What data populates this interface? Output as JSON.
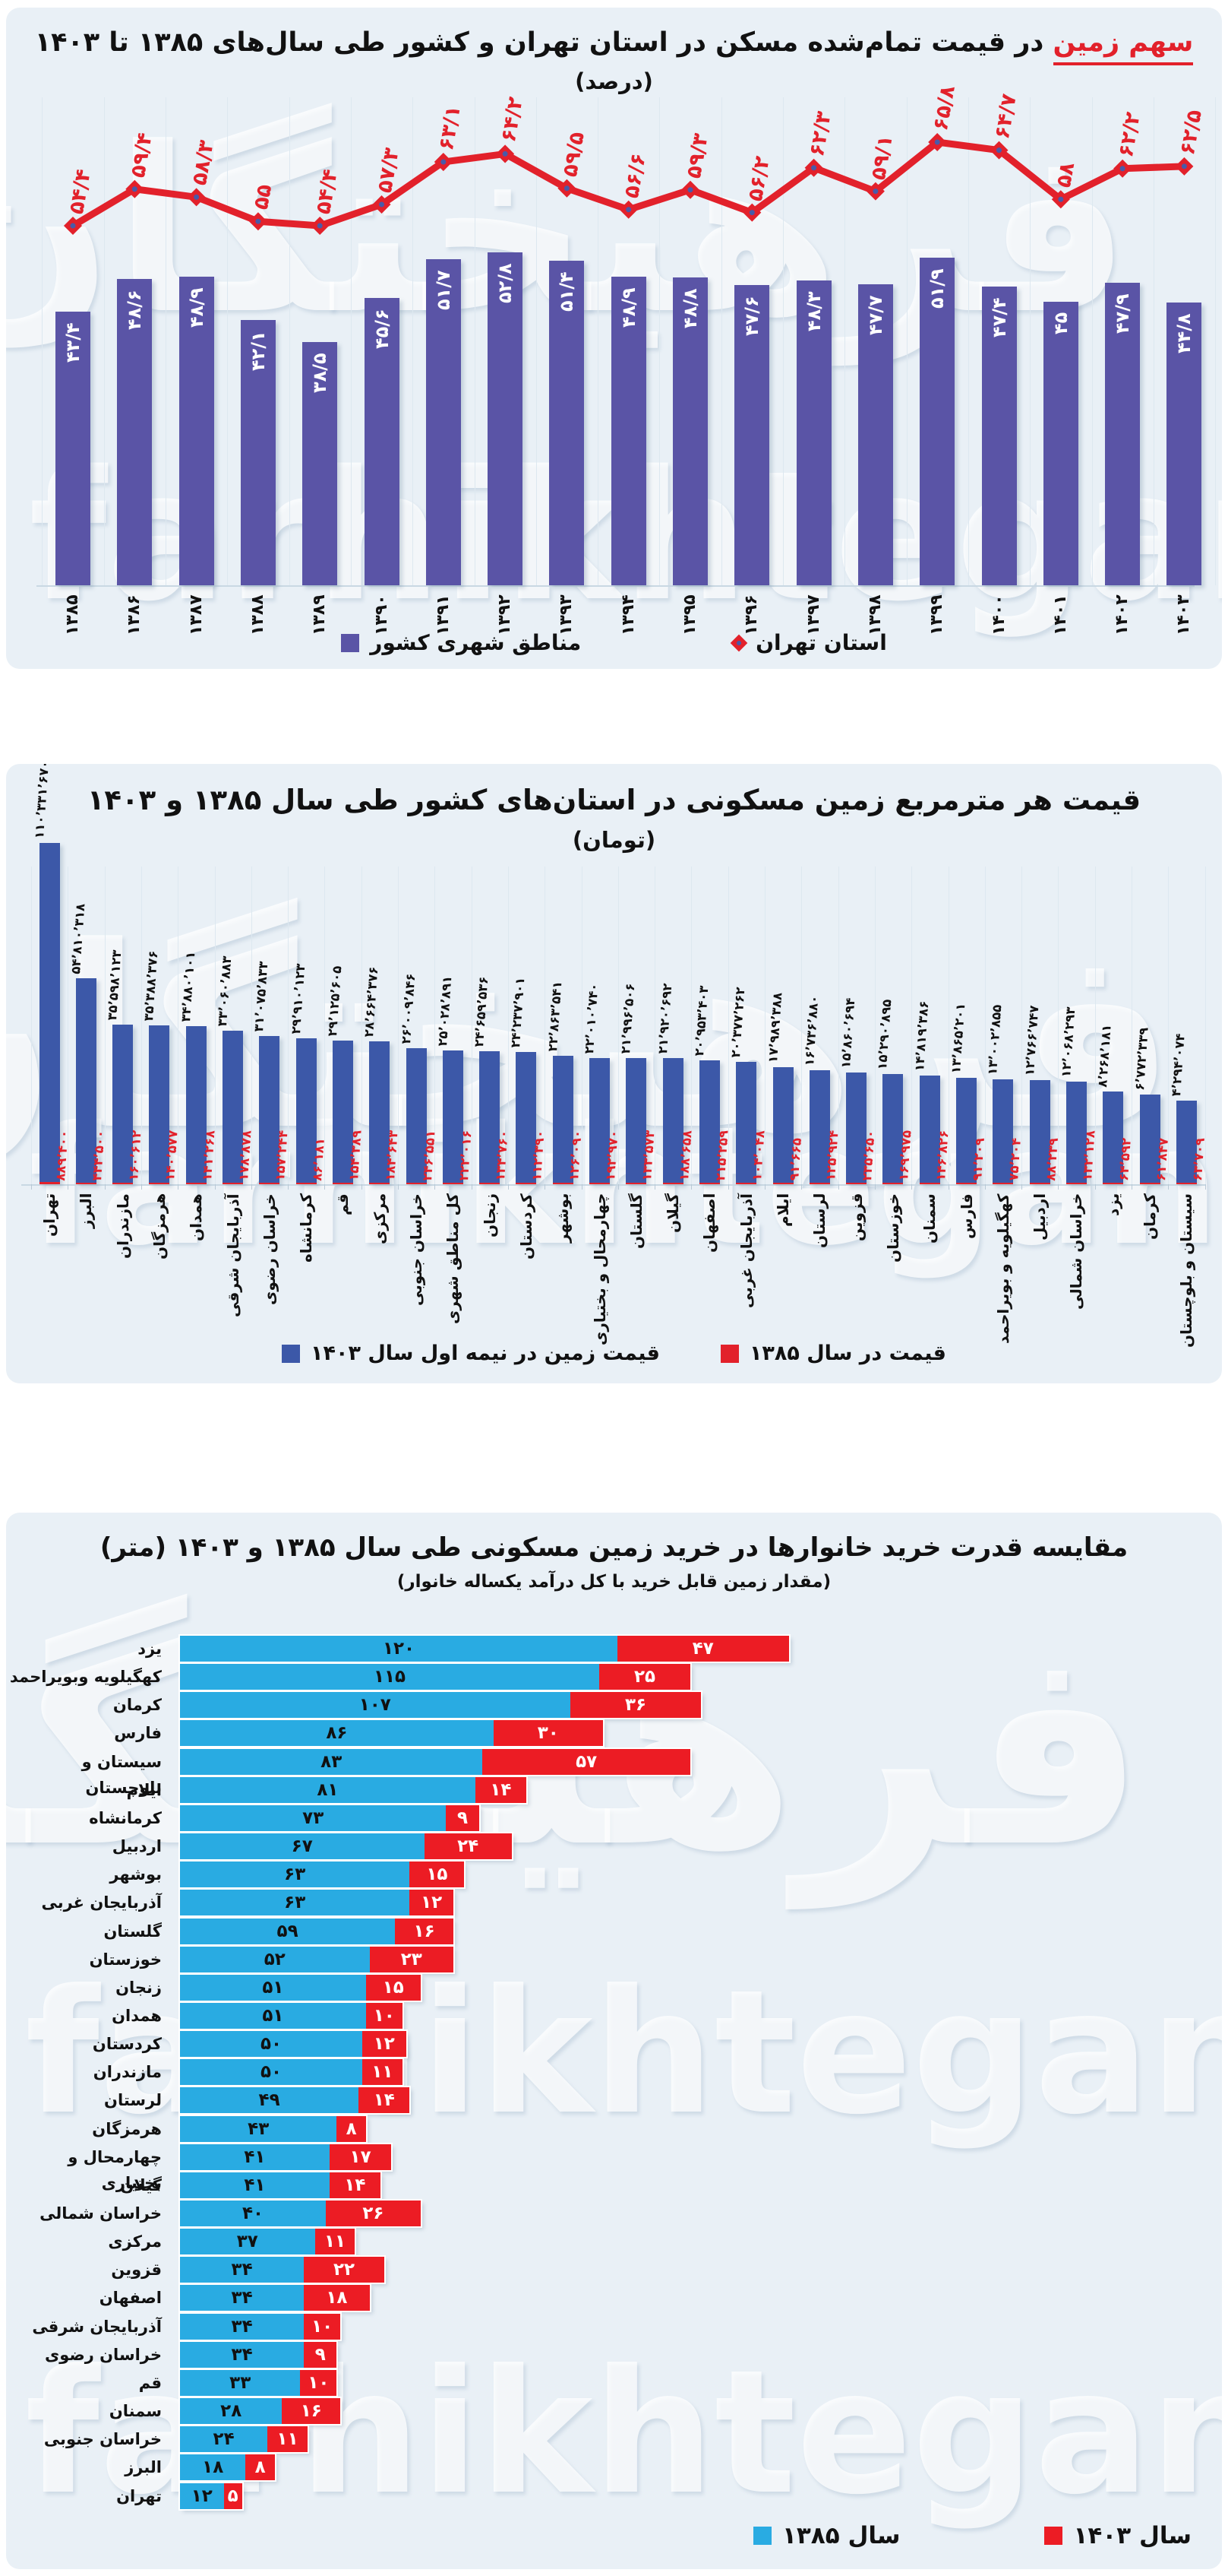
{
  "watermark": {
    "latin": "farhikhtegan",
    "farsi": "فرهیختگان"
  },
  "chart_data": [
    {
      "type": "bar",
      "title_highlight": "سهم زمین",
      "title_rest": " در قیمت تمام‌شده مسکن در استان تهران و کشور طی سال‌های ۱۳۸۵ تا ۱۴۰۳",
      "subtitle": "(درصد)",
      "categories": [
        1385,
        1386,
        1387,
        1388,
        1389,
        1390,
        1391,
        1392,
        1393,
        1394,
        1395,
        1396,
        1397,
        1398,
        1399,
        1400,
        1401,
        1402,
        1403
      ],
      "series": [
        {
          "name": "مناطق شهری کشور",
          "chart": "bar",
          "color": "#5a54a6",
          "values": [
            43.4,
            48.6,
            48.9,
            42.1,
            38.5,
            45.6,
            51.7,
            52.8,
            51.4,
            48.9,
            48.8,
            47.6,
            48.3,
            47.7,
            51.9,
            47.4,
            45,
            47.9,
            44.8
          ]
        },
        {
          "name": "استان تهران",
          "chart": "line",
          "color": "#e2212b",
          "values": [
            54.4,
            59.4,
            58.3,
            55,
            54.4,
            57.3,
            63.1,
            64.2,
            59.5,
            56.6,
            59.3,
            56.2,
            62.3,
            59.1,
            65.8,
            64.7,
            58,
            62.2,
            62.5
          ]
        }
      ],
      "ylim": [
        0,
        70
      ],
      "grid": "vertical",
      "legend_position": "bottom"
    },
    {
      "type": "bar",
      "title": "قیمت هر مترمربع زمین مسکونی در استان‌های کشور طی سال ۱۳۸۵ و ۱۴۰۳",
      "subtitle": "(تومان)",
      "categories": [
        "تهران",
        "البرز",
        "مازندران",
        "هرمزگان",
        "همدان",
        "آذربایجان شرقی",
        "خراسان رضوی",
        "کرمانشاه",
        "قم",
        "مرکزی",
        "خراسان جنوبی",
        "کل مناطق شهری",
        "زنجان",
        "کردستان",
        "بوشهر",
        "چهارمحال و بختیاری",
        "گلستان",
        "گیلان",
        "اصفهان",
        "آذربایجان غربی",
        "ایلام",
        "لرستان",
        "قزوین",
        "خوزستان",
        "سمنان",
        "فارس",
        "کهگیلویه و بویراحمد",
        "اردبیل",
        "خراسان شمالی",
        "یزد",
        "کرمان",
        "سیستان و بلوچستان"
      ],
      "series": [
        {
          "name": "قیمت زمین در نیمه اول سال ۱۴۰۳",
          "color": "#3c58a8",
          "values": [
            110331670,
            54810318,
            35598123,
            35388376,
            34880101,
            33060883,
            31075833,
            29910123,
            29125605,
            28664376,
            26009846,
            25028891,
            24659536,
            24237901,
            22863541,
            22010740,
            21996506,
            21920692,
            20953403,
            20377262,
            17989388,
            16736880,
            15860694,
            15290895,
            14819386,
            13865201,
            13002855,
            12766747,
            12068293,
            8268181,
            6772339,
            4294074
          ]
        },
        {
          "name": "قیمت در سال ۱۳۸۵",
          "color": "#e2212b",
          "values": [
            889400,
            444500,
            160612,
            140577,
            141268,
            178878,
            157244,
            86181,
            154389,
            184643,
            246551,
            222016,
            134760,
            112390,
            126090,
            192970,
            133573,
            188658,
            215259,
            104048,
            91665,
            125924,
            235650,
            169975,
            146826,
            91209,
            75204,
            88239,
            132128,
            64592,
            61847,
            63709
          ]
        }
      ],
      "grid": "vertical",
      "legend_position": "bottom"
    },
    {
      "type": "stacked-bar-horizontal",
      "title": "مقایسه قدرت خرید خانوارها در خرید زمین مسکونی طی سال ۱۳۸۵ و ۱۴۰۳ (متر)",
      "subtitle": "(مقدار زمین قابل خرید با کل درآمد یکساله خانوار)",
      "categories": [
        "یزد",
        "کهگیلویه وبویراحمد",
        "کرمان",
        "فارس",
        "سیستان و بلوچستان",
        "ایلام",
        "کرمانشاه",
        "اردبیل",
        "بوشهر",
        "آذربایجان غربی",
        "گلستان",
        "خوزستان",
        "زنجان",
        "همدان",
        "کردستان",
        "مازندران",
        "لرستان",
        "هرمزگان",
        "چهارمحال و بختیاری",
        "گیلان",
        "خراسان شمالی",
        "مرکزی",
        "قزوین",
        "اصفهان",
        "آذربایجان شرقی",
        "خراسان رضوی",
        "قم",
        "سمنان",
        "خراسان جنوبی",
        "البرز",
        "تهران"
      ],
      "series": [
        {
          "name": "سال ۱۳۸۵",
          "color": "#29abe2",
          "values": [
            120,
            115,
            107,
            86,
            83,
            81,
            73,
            67,
            63,
            63,
            59,
            52,
            51,
            51,
            50,
            50,
            49,
            43,
            41,
            41,
            40,
            37,
            34,
            34,
            34,
            34,
            33,
            28,
            24,
            18,
            12
          ]
        },
        {
          "name": "سال ۱۴۰۳",
          "color": "#ec1c24",
          "values": [
            47,
            25,
            36,
            30,
            57,
            14,
            9,
            24,
            15,
            12,
            16,
            23,
            15,
            10,
            12,
            11,
            14,
            8,
            17,
            14,
            26,
            11,
            22,
            18,
            10,
            9,
            10,
            16,
            11,
            8,
            5
          ]
        }
      ],
      "legend_position": "bottom-left"
    }
  ]
}
